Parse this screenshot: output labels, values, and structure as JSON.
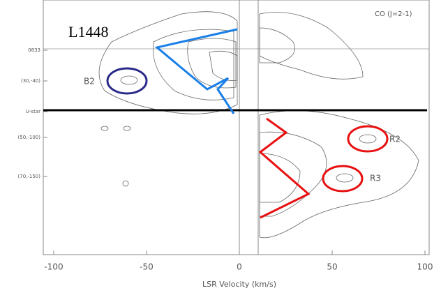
{
  "chart_data": {
    "type": "contour",
    "title": "L1448",
    "annotations": [
      "CO (J=2-1)",
      "B2",
      "R2",
      "R3"
    ],
    "ylabels": [
      "0833",
      "(30,-40)",
      "U-star",
      "(50,-100)",
      "(70,-150)"
    ],
    "xlabel": "LSR Velocity (km/s)",
    "xlim": [
      -100,
      100
    ],
    "xticks": [
      -100,
      -50,
      0,
      50,
      100
    ]
  }
}
